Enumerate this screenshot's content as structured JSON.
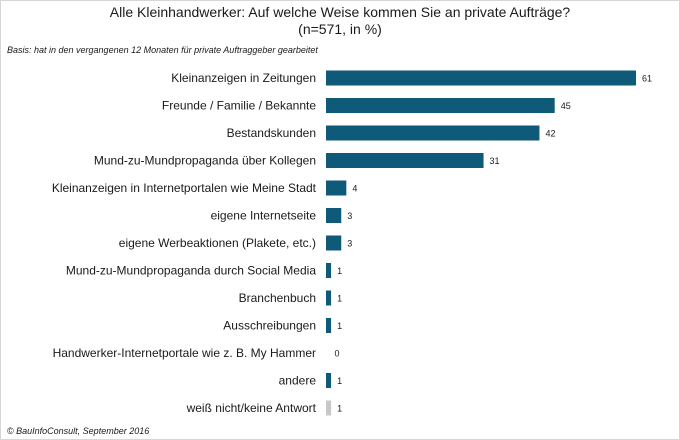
{
  "chart_data": {
    "type": "bar",
    "orientation": "horizontal",
    "title": "Alle Kleinhandwerker: Auf welche Weise kommen Sie an private Aufträge?",
    "subtitle": "(n=571, in %)",
    "note": "Basis: hat in den vergangenen 12 Monaten für private Auftraggeber gearbeitet",
    "source": "© BauInfoConsult, September 2016",
    "categories": [
      "Kleinanzeigen in Zeitungen",
      "Freunde / Familie / Bekannte",
      "Bestandskunden",
      "Mund-zu-Mundpropaganda über Kollegen",
      "Kleinanzeigen in Internetportalen wie Meine Stadt",
      "eigene Internetseite",
      "eigene Werbeaktionen (Plakete, etc.)",
      "Mund-zu-Mundpropaganda durch Social Media",
      "Branchenbuch",
      "Ausschreibungen",
      "Handwerker-Internetportale wie z. B. My Hammer",
      "andere",
      "weiß nicht/keine Antwort"
    ],
    "values": [
      61,
      45,
      42,
      31,
      4,
      3,
      3,
      1,
      1,
      1,
      0,
      1,
      1
    ],
    "colors": [
      "#0e5a78",
      "#0e5a78",
      "#0e5a78",
      "#0e5a78",
      "#0e5a78",
      "#0e5a78",
      "#0e5a78",
      "#0e5a78",
      "#0e5a78",
      "#0e5a78",
      "#0e5a78",
      "#0e5a78",
      "#c8c8c8"
    ],
    "xlim": [
      0,
      61
    ],
    "grid": false,
    "legend": "none"
  }
}
